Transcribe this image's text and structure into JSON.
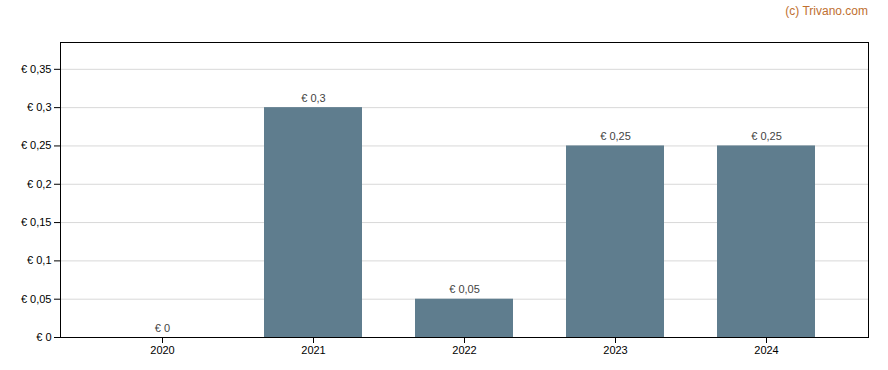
{
  "chart_data": {
    "type": "bar",
    "categories": [
      "2020",
      "2021",
      "2022",
      "2023",
      "2024"
    ],
    "values": [
      0.0,
      0.3,
      0.05,
      0.25,
      0.25
    ],
    "value_labels": [
      "€ 0",
      "€ 0,3",
      "€ 0,05",
      "€ 0,25",
      "€ 0,25"
    ],
    "data_labels": true,
    "color": "#5f7d8e",
    "ylim": [
      0,
      0.385
    ],
    "yticks": [
      {
        "value": 0.0,
        "label": "€ 0"
      },
      {
        "value": 0.05,
        "label": "€ 0,05"
      },
      {
        "value": 0.1,
        "label": "€ 0,1"
      },
      {
        "value": 0.15,
        "label": "€ 0,15"
      },
      {
        "value": 0.2,
        "label": "€ 0,2"
      },
      {
        "value": 0.25,
        "label": "€ 0,25"
      },
      {
        "value": 0.3,
        "label": "€ 0,3"
      },
      {
        "value": 0.35,
        "label": "€ 0,35"
      }
    ],
    "grid": true,
    "annotations": [
      "(c) Trivano.com"
    ]
  }
}
